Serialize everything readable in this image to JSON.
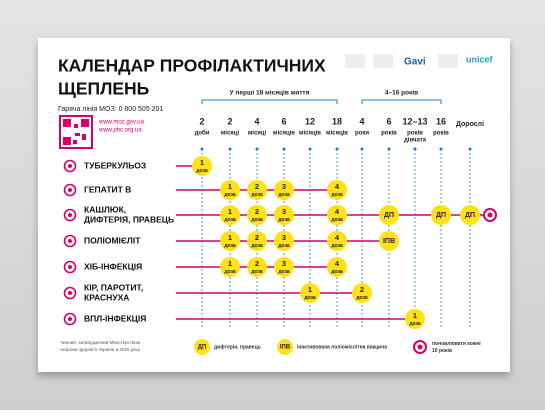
{
  "header": {
    "title_lines": [
      "КАЛЕНДАР ПРОФІЛАКТИЧНИХ",
      "ЩЕПЛЕНЬ"
    ],
    "hotline": "Гаряча лінія МОЗ: 0 800 505 201",
    "links": [
      "www.moz.gov.ua",
      "www.phc.org.ua"
    ],
    "partners": [
      "Gavi",
      "unicef"
    ]
  },
  "groups": [
    "У перші 18 місяців життя",
    "4–16 років"
  ],
  "columns": [
    {
      "lines": [
        "2",
        "доби"
      ]
    },
    {
      "lines": [
        "2",
        "місяці"
      ]
    },
    {
      "lines": [
        "4",
        "місяці"
      ]
    },
    {
      "lines": [
        "6",
        "місяців"
      ]
    },
    {
      "lines": [
        "12",
        "місяців"
      ]
    },
    {
      "lines": [
        "18",
        "місяців"
      ]
    },
    {
      "lines": [
        "4",
        "роки"
      ]
    },
    {
      "lines": [
        "6",
        "років"
      ]
    },
    {
      "lines": [
        "12–13",
        "років",
        "дівчата"
      ]
    },
    {
      "lines": [
        "16",
        "років"
      ]
    },
    {
      "lines": [
        "Дорослі"
      ]
    }
  ],
  "rows": [
    {
      "lines": [
        "ТУБЕРКУЛЬОЗ"
      ],
      "cells": [
        [
          "1",
          "доза"
        ],
        null,
        null,
        null,
        null,
        null,
        null,
        null,
        null,
        null,
        null
      ]
    },
    {
      "lines": [
        "ГЕПАТИТ В"
      ],
      "cells": [
        null,
        [
          "1",
          "доза"
        ],
        [
          "2",
          "доза"
        ],
        [
          "3",
          "доза"
        ],
        null,
        [
          "4",
          "доза"
        ],
        null,
        null,
        null,
        null,
        null
      ]
    },
    {
      "lines": [
        "КАШЛЮК,",
        "ДИФТЕРІЯ, ПРАВЕЦЬ"
      ],
      "cells": [
        null,
        [
          "1",
          "доза"
        ],
        [
          "2",
          "доза"
        ],
        [
          "3",
          "доза"
        ],
        null,
        [
          "4",
          "доза"
        ],
        null,
        [
          "ДП"
        ],
        null,
        [
          "ДП"
        ],
        [
          "ДП"
        ]
      ]
    },
    {
      "lines": [
        "ПОЛІОМІЄЛІТ"
      ],
      "cells": [
        null,
        [
          "1",
          "доза"
        ],
        [
          "2",
          "доза"
        ],
        [
          "3",
          "доза"
        ],
        null,
        [
          "4",
          "доза"
        ],
        null,
        [
          "ІПВ"
        ],
        null,
        null,
        null
      ]
    },
    {
      "lines": [
        "ХІБ-ІНФЕКЦІЯ"
      ],
      "cells": [
        null,
        [
          "1",
          "доза"
        ],
        [
          "2",
          "доза"
        ],
        [
          "3",
          "доза"
        ],
        null,
        [
          "4",
          "доза"
        ],
        null,
        null,
        null,
        null,
        null
      ]
    },
    {
      "lines": [
        "КІР, ПАРОТИТ,",
        "КРАСНУХА"
      ],
      "cells": [
        null,
        null,
        null,
        null,
        [
          "1",
          "доза"
        ],
        null,
        [
          "2",
          "доза"
        ],
        null,
        null,
        null,
        null
      ]
    },
    {
      "lines": [
        "ВПЛ-ІНФЕКЦІЯ"
      ],
      "cells": [
        null,
        null,
        null,
        null,
        null,
        null,
        null,
        null,
        [
          "1",
          "доза"
        ],
        null,
        null
      ]
    }
  ],
  "legend": [
    {
      "badge": "ДП",
      "text": [
        "дифтерія, правець"
      ]
    },
    {
      "badge": "ІПВ",
      "text": [
        "інактивована поліомієлітна вакцина"
      ]
    },
    {
      "text": [
        "поновлювати кожні",
        "10 років"
      ]
    }
  ],
  "footnote": [
    "Чинний, затверджений Міністерством",
    "охорони здоров'я України в 2025 році"
  ]
}
